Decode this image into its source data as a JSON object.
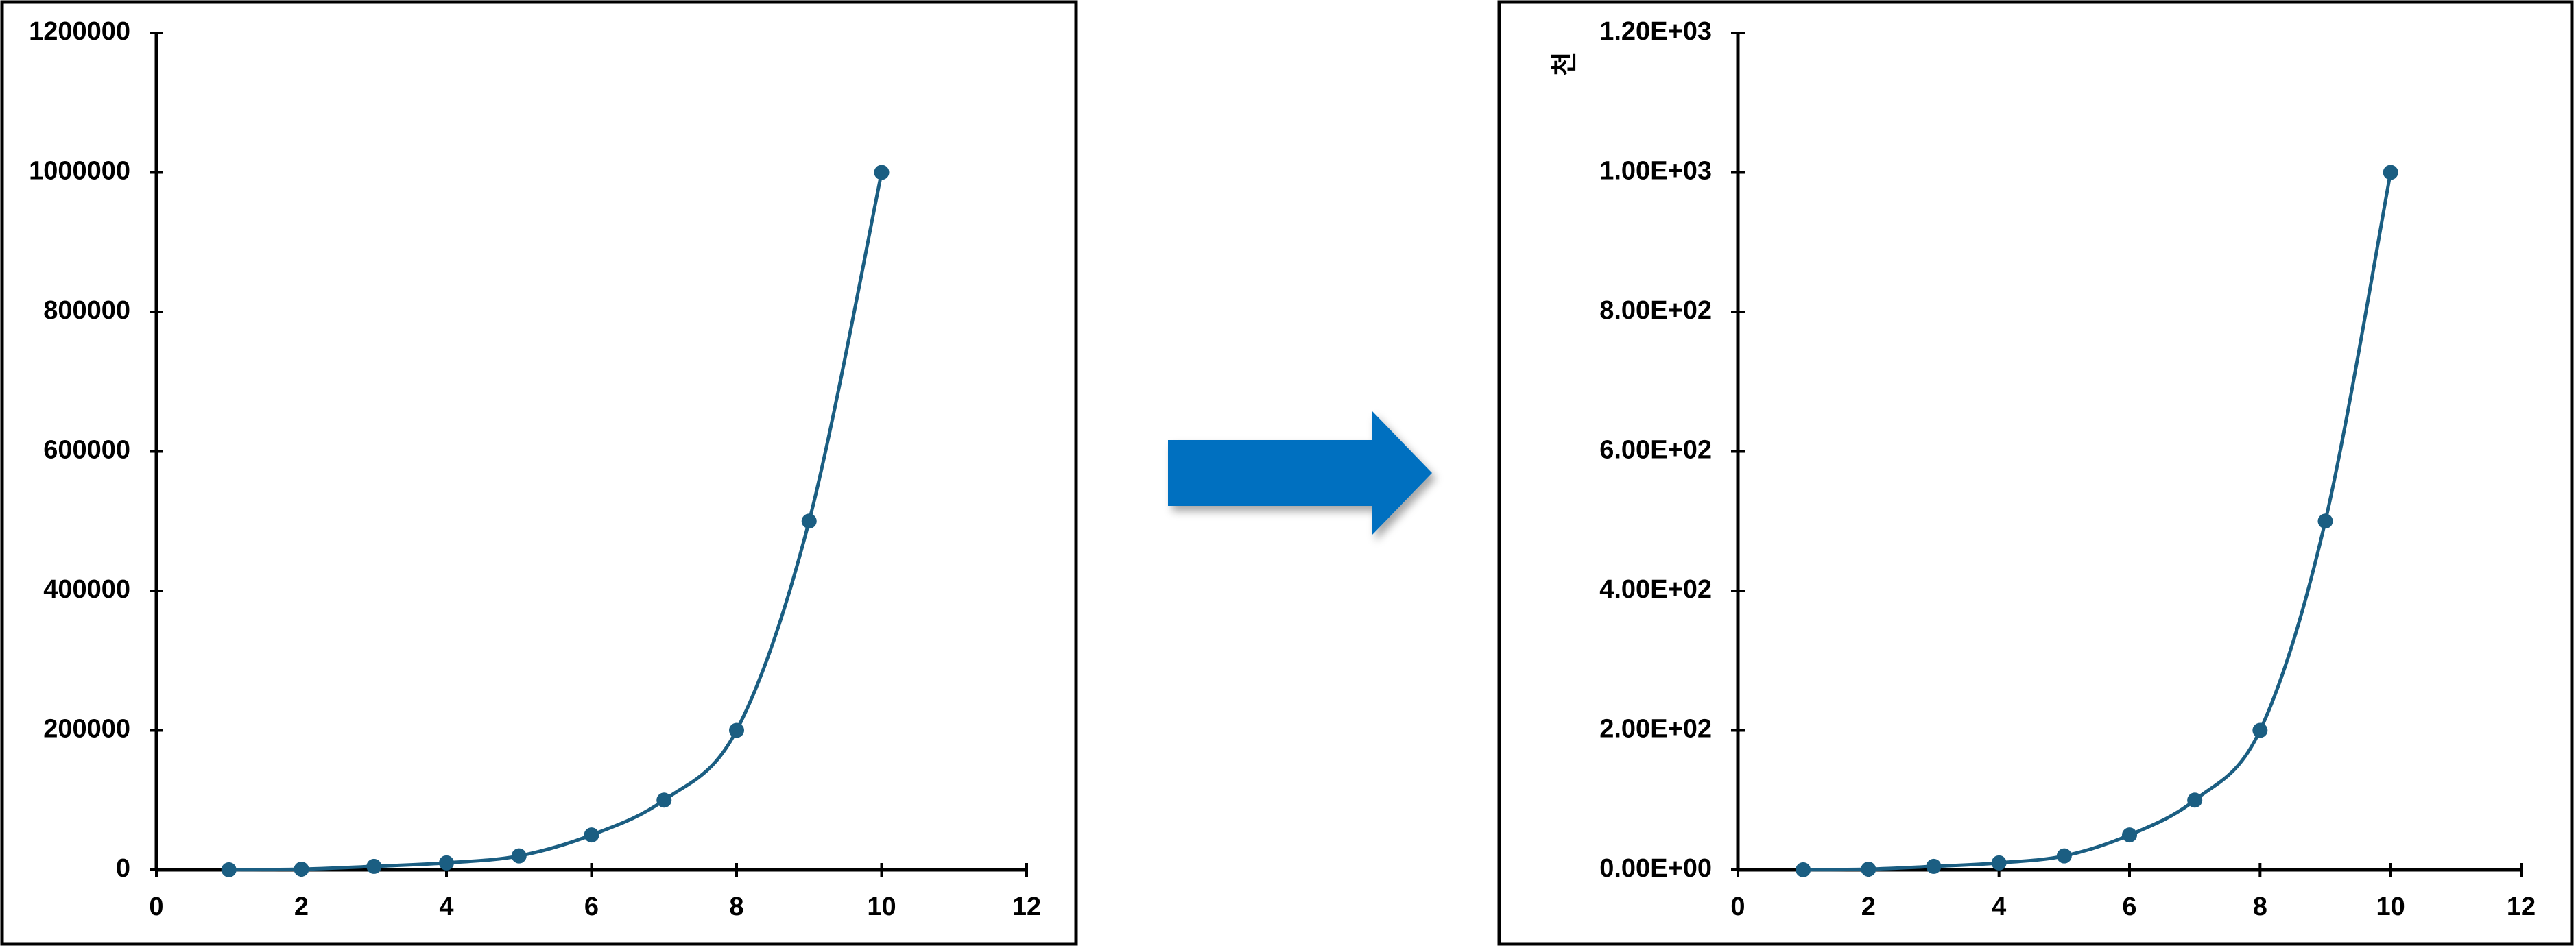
{
  "chart_data": [
    {
      "type": "line",
      "x": [
        1,
        2,
        3,
        4,
        5,
        6,
        7,
        8,
        9,
        10
      ],
      "series": [
        {
          "color": "#1b5e82",
          "values": [
            100,
            1000,
            5000,
            10000,
            20000,
            50000,
            100000,
            200000,
            500000,
            1000000
          ]
        }
      ],
      "xlim": [
        0,
        12
      ],
      "xticks": [
        0,
        2,
        4,
        6,
        8,
        10,
        12
      ],
      "ylim": [
        0,
        1200000
      ],
      "yticks": [
        0,
        200000,
        400000,
        600000,
        800000,
        1000000,
        1200000
      ]
    },
    {
      "type": "line",
      "ylabel": "천",
      "x": [
        1,
        2,
        3,
        4,
        5,
        6,
        7,
        8,
        9,
        10
      ],
      "series": [
        {
          "color": "#1b5e82",
          "values": [
            0.1,
            1,
            5,
            10,
            20,
            50,
            100,
            200,
            500,
            1000
          ]
        }
      ],
      "xlim": [
        0,
        12
      ],
      "xticks": [
        0,
        2,
        4,
        6,
        8,
        10,
        12
      ],
      "ylim": [
        0,
        1200
      ],
      "yticks": [
        {
          "value": 0,
          "label": "0.00E+00"
        },
        {
          "value": 200,
          "label": "2.00E+02"
        },
        {
          "value": 400,
          "label": "4.00E+02"
        },
        {
          "value": 600,
          "label": "6.00E+02"
        },
        {
          "value": 800,
          "label": "8.00E+02"
        },
        {
          "value": 1000,
          "label": "1.00E+03"
        },
        {
          "value": 1200,
          "label": "1.20E+03"
        }
      ]
    }
  ]
}
